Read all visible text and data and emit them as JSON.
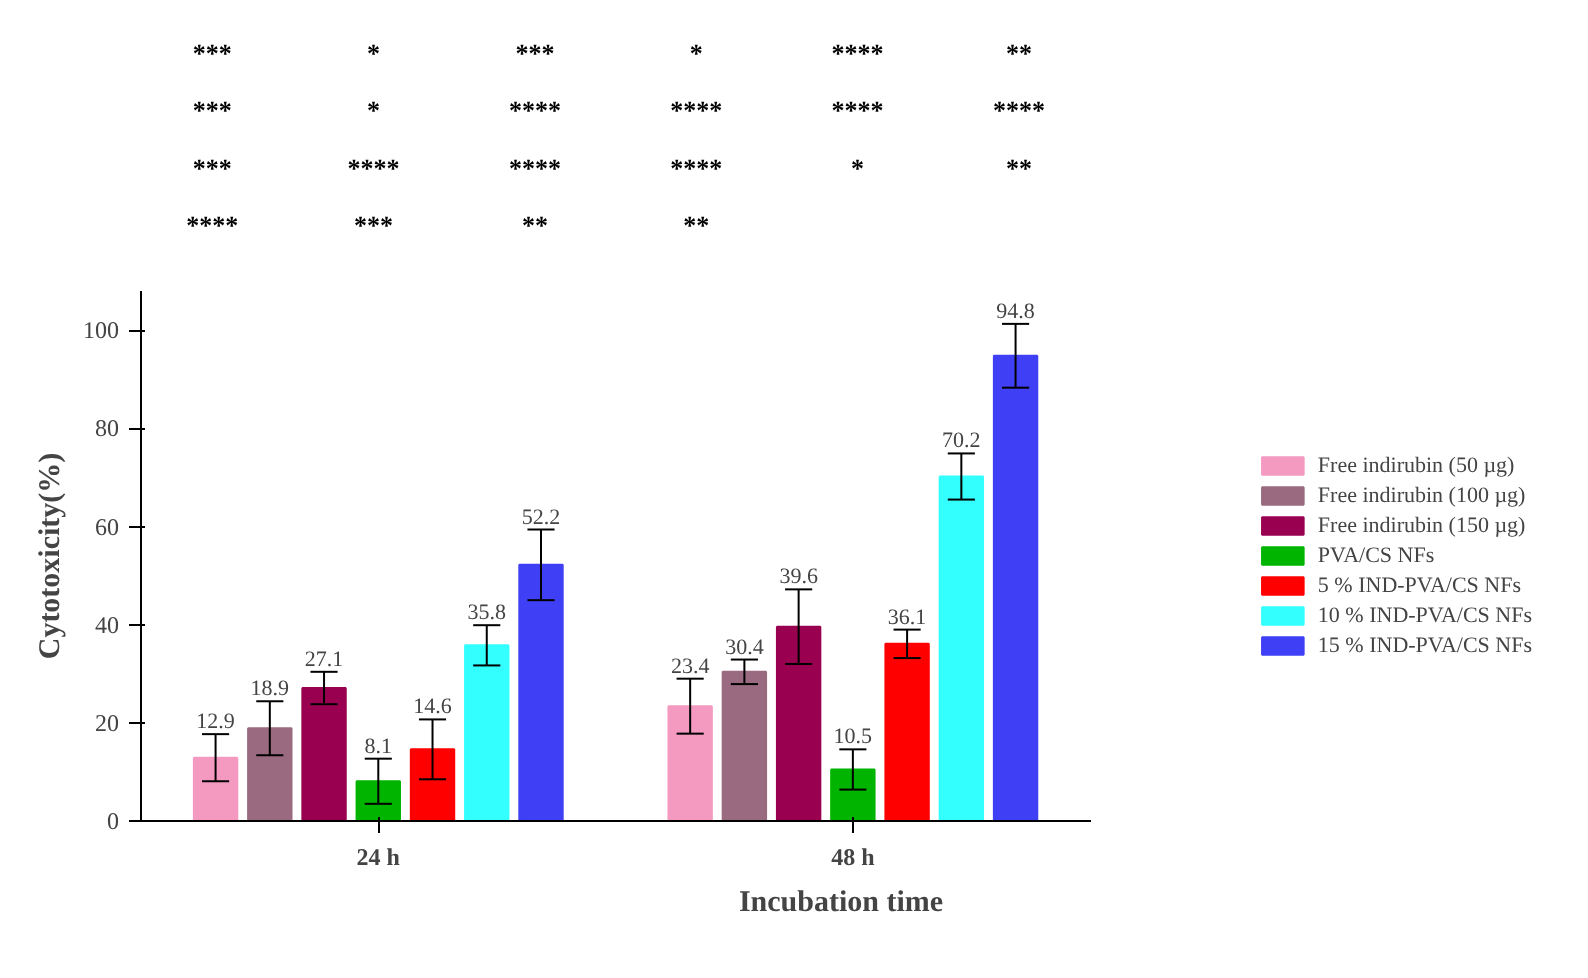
{
  "chart_data": {
    "type": "bar",
    "xlabel": "Incubation time",
    "ylabel": "Cytotoxicity(%)",
    "categories": [
      "24 h",
      "48 h"
    ],
    "series": [
      {
        "name": "Free indirubin (50 µg)",
        "color": "#f49ac1",
        "values": [
          12.9,
          23.4
        ],
        "errors": [
          4.8,
          5.6
        ]
      },
      {
        "name": "Free indirubin (100 µg)",
        "color": "#9a6a80",
        "values": [
          18.9,
          30.4
        ],
        "errors": [
          5.5,
          2.5
        ]
      },
      {
        "name": "Free indirubin (150 µg)",
        "color": "#990050",
        "values": [
          27.1,
          39.6
        ],
        "errors": [
          3.3,
          7.6
        ]
      },
      {
        "name": "PVA/CS NFs",
        "color": "#00b400",
        "values": [
          8.1,
          10.5
        ],
        "errors": [
          4.6,
          4.1
        ]
      },
      {
        "name": "5 % IND-PVA/CS NFs",
        "color": "#ff0000",
        "values": [
          14.6,
          36.1
        ],
        "errors": [
          6.1,
          2.9
        ]
      },
      {
        "name": "10 % IND-PVA/CS NFs",
        "color": "#33ffff",
        "values": [
          35.8,
          70.2
        ],
        "errors": [
          4.1,
          4.7
        ]
      },
      {
        "name": "15 % IND-PVA/CS NFs",
        "color": "#3f3ff5",
        "values": [
          52.2,
          94.8
        ],
        "errors": [
          7.2,
          6.5
        ]
      }
    ],
    "ylim": [
      0,
      108
    ],
    "yticks": [
      0,
      20,
      40,
      60,
      80,
      100
    ],
    "data_labels": true,
    "legend": "right",
    "grid": false,
    "annotations": [
      "***",
      "*",
      "***",
      "*",
      "****",
      "**",
      "***",
      "*",
      "****",
      "****",
      "****",
      "****",
      "***",
      "****",
      "****",
      "****",
      "*",
      "**",
      "****",
      "***",
      "**",
      "**"
    ]
  }
}
